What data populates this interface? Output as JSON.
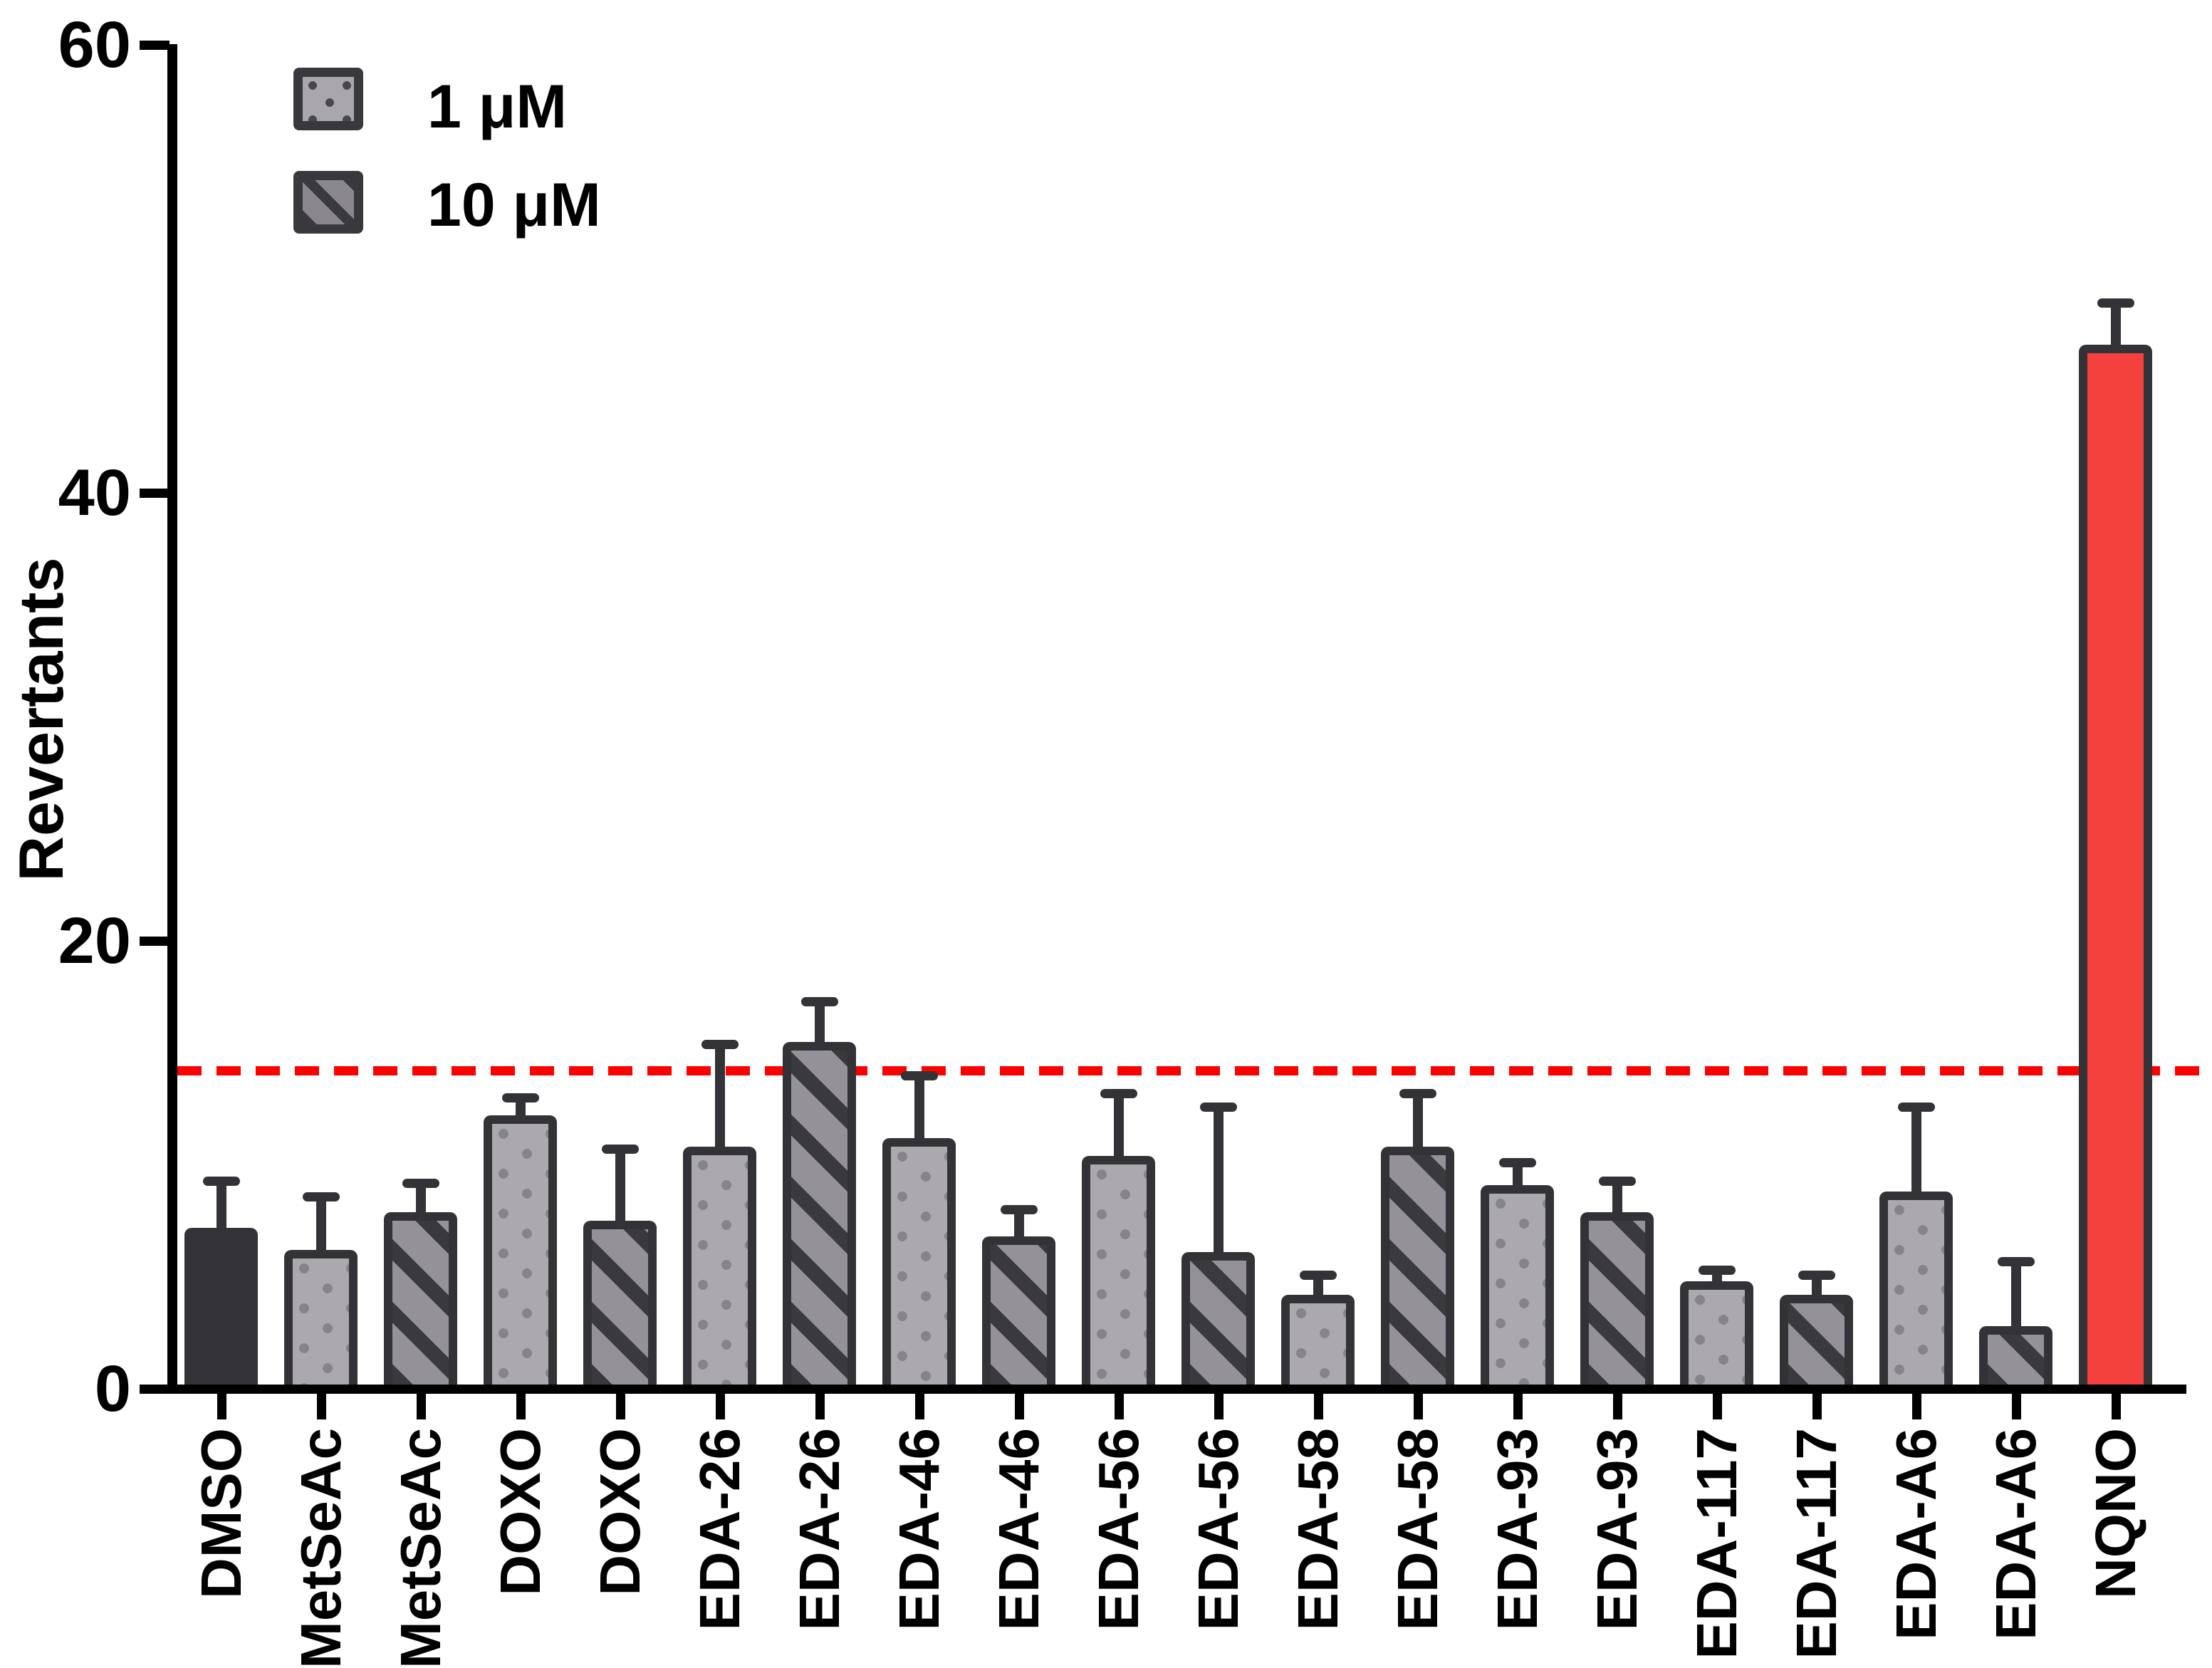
{
  "colors": {
    "axis": "#000000",
    "outline": "#333237",
    "solid_bar": "#333237",
    "red_bar": "#F5413E",
    "dashed_line": "#FB0100",
    "dots_fill": "#ACA9AE",
    "dots_dot": "#85838C",
    "hatch_fill": "#949298",
    "hatch_stripe": "#3A393D"
  },
  "chart_data": {
    "type": "bar",
    "title": "",
    "xlabel": "",
    "ylabel": "Revertants",
    "ylim": [
      0,
      60
    ],
    "yticks": [
      0,
      20,
      40,
      60
    ],
    "grid": false,
    "legend_position": "top-left-inside",
    "legend": [
      {
        "label": "1 μM",
        "pattern": "dots"
      },
      {
        "label": "10 μM",
        "pattern": "hatch"
      }
    ],
    "threshold_line": {
      "value": 14.2,
      "color": "#FB0100",
      "style": "dashed"
    },
    "bars": [
      {
        "label": "DMSO",
        "series": "control",
        "pattern": "solid",
        "value": 7.2,
        "error": 2.1
      },
      {
        "label": "MetSeAc",
        "series": "1 μM",
        "pattern": "dots",
        "value": 6.2,
        "error": 2.4
      },
      {
        "label": "MetSeAc",
        "series": "10 μM",
        "pattern": "hatch",
        "value": 7.9,
        "error": 1.3
      },
      {
        "label": "DOXO",
        "series": "1 μM",
        "pattern": "dots",
        "value": 12.2,
        "error": 0.8
      },
      {
        "label": "DOXO",
        "series": "10 μM",
        "pattern": "hatch",
        "value": 7.5,
        "error": 3.2
      },
      {
        "label": "EDA-26",
        "series": "1 μM",
        "pattern": "dots",
        "value": 10.8,
        "error": 4.6
      },
      {
        "label": "EDA-26",
        "series": "10 μM",
        "pattern": "hatch",
        "value": 15.5,
        "error": 1.8
      },
      {
        "label": "EDA-46",
        "series": "1 μM",
        "pattern": "dots",
        "value": 11.2,
        "error": 2.8
      },
      {
        "label": "EDA-46",
        "series": "10 μM",
        "pattern": "hatch",
        "value": 6.8,
        "error": 1.2
      },
      {
        "label": "EDA-56",
        "series": "1 μM",
        "pattern": "dots",
        "value": 10.4,
        "error": 2.8
      },
      {
        "label": "EDA-56",
        "series": "10 μM",
        "pattern": "hatch",
        "value": 6.1,
        "error": 6.5
      },
      {
        "label": "EDA-58",
        "series": "1 μM",
        "pattern": "dots",
        "value": 4.2,
        "error": 0.9
      },
      {
        "label": "EDA-58",
        "series": "10 μM",
        "pattern": "hatch",
        "value": 10.8,
        "error": 2.4
      },
      {
        "label": "EDA-93",
        "series": "1 μM",
        "pattern": "dots",
        "value": 9.1,
        "error": 1.0
      },
      {
        "label": "EDA-93",
        "series": "10 μM",
        "pattern": "hatch",
        "value": 7.9,
        "error": 1.4
      },
      {
        "label": "EDA-117",
        "series": "1 μM",
        "pattern": "dots",
        "value": 4.8,
        "error": 0.5
      },
      {
        "label": "EDA-117",
        "series": "10 μM",
        "pattern": "hatch",
        "value": 4.2,
        "error": 0.9
      },
      {
        "label": "EDA-A6",
        "series": "1 μM",
        "pattern": "dots",
        "value": 8.8,
        "error": 3.8
      },
      {
        "label": "EDA-A6",
        "series": "10 μM",
        "pattern": "hatch",
        "value": 2.8,
        "error": 2.9
      },
      {
        "label": "NQNO",
        "series": "positive control",
        "pattern": "red",
        "value": 46.6,
        "error": 1.9
      }
    ]
  }
}
